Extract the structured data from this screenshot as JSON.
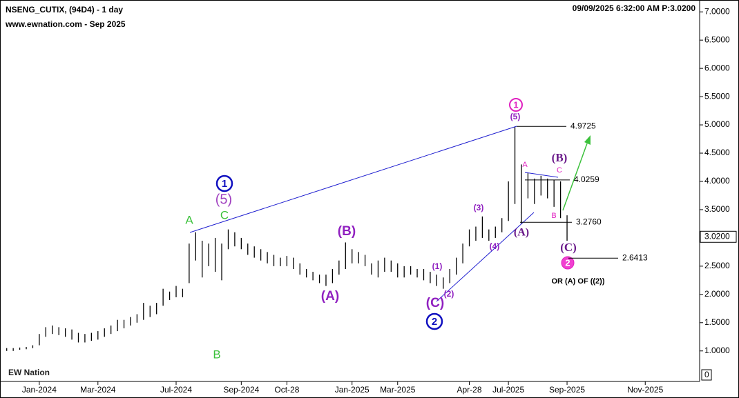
{
  "chart_data": {
    "type": "hilo",
    "title": "NSENG_CUTIX, (94D4) - 1 day",
    "subtitle": "www.ewnation.com  - Sep 2025",
    "timestamp": "09/09/2025 6:32:00 AM  P:3.0200",
    "logo": "EW Nation",
    "color": "#000000",
    "categories": [
      null,
      null,
      null,
      null,
      null,
      "Jan-2024",
      null,
      null,
      null,
      null,
      null,
      null,
      null,
      null,
      "Mar-2024",
      null,
      null,
      null,
      null,
      null,
      null,
      null,
      null,
      null,
      null,
      null,
      "Jul-2024",
      null,
      null,
      null,
      null,
      null,
      null,
      null,
      null,
      null,
      "Sep-2024",
      null,
      null,
      null,
      null,
      null,
      null,
      "Oct-28",
      null,
      null,
      null,
      null,
      null,
      null,
      null,
      null,
      null,
      "Jan-2025",
      null,
      null,
      null,
      null,
      null,
      null,
      "Mar-2025",
      null,
      null,
      null,
      null,
      null,
      null,
      null,
      null,
      null,
      null,
      "Apr-28",
      null,
      null,
      null,
      null,
      null,
      "Jul-2025",
      null,
      null,
      null,
      null,
      null,
      null,
      null,
      null,
      "Sep-2025",
      null,
      null,
      null,
      null,
      null,
      null,
      null,
      null,
      null,
      null,
      null,
      "Nov-2025",
      null,
      null,
      null,
      null,
      null,
      null,
      null
    ],
    "highs": [
      1.05,
      1.05,
      1.06,
      1.07,
      1.1,
      1.3,
      1.42,
      1.45,
      1.42,
      1.4,
      1.38,
      1.32,
      1.3,
      1.32,
      1.35,
      1.4,
      1.45,
      1.55,
      1.55,
      1.6,
      1.65,
      1.85,
      1.8,
      1.85,
      2.1,
      2.05,
      2.15,
      2.1,
      2.9,
      3.1,
      2.95,
      2.9,
      3.0,
      2.9,
      3.15,
      3.1,
      3.0,
      2.9,
      2.85,
      2.8,
      2.75,
      2.7,
      2.65,
      2.68,
      2.65,
      2.55,
      2.45,
      2.4,
      2.35,
      2.35,
      2.45,
      2.6,
      2.92,
      2.8,
      2.75,
      2.7,
      2.55,
      2.6,
      2.65,
      2.6,
      2.55,
      2.5,
      2.5,
      2.45,
      2.45,
      2.4,
      2.35,
      2.3,
      2.45,
      2.65,
      2.9,
      3.15,
      3.2,
      3.38,
      3.15,
      3.2,
      3.35,
      4.0,
      4.97,
      4.3,
      4.15,
      4.05,
      4.1,
      4.05,
      4.03,
      4.0,
      3.4,
      null,
      null,
      null,
      null,
      null,
      null,
      null,
      null,
      null,
      null,
      null,
      null,
      null,
      null,
      null,
      null,
      null,
      null,
      null
    ],
    "lows": [
      1.0,
      1.0,
      1.02,
      1.03,
      1.05,
      1.1,
      1.25,
      1.3,
      1.28,
      1.25,
      1.2,
      1.15,
      1.15,
      1.18,
      1.2,
      1.25,
      1.3,
      1.35,
      1.4,
      1.45,
      1.5,
      1.55,
      1.6,
      1.65,
      1.8,
      1.9,
      1.95,
      1.95,
      2.2,
      2.6,
      2.3,
      2.5,
      2.4,
      2.25,
      2.8,
      2.85,
      2.8,
      2.7,
      2.65,
      2.6,
      2.55,
      2.5,
      2.5,
      2.5,
      2.45,
      2.35,
      2.3,
      2.25,
      2.2,
      2.15,
      2.2,
      2.35,
      2.45,
      2.55,
      2.55,
      2.5,
      2.35,
      2.3,
      2.4,
      2.4,
      2.3,
      2.3,
      2.35,
      2.3,
      2.25,
      2.2,
      2.15,
      2.1,
      2.2,
      2.35,
      2.55,
      2.85,
      2.95,
      3.0,
      2.95,
      3.0,
      3.1,
      3.3,
      3.6,
      3.25,
      3.7,
      3.6,
      3.75,
      3.7,
      3.55,
      3.35,
      2.95,
      null,
      null,
      null,
      null,
      null,
      null,
      null,
      null,
      null,
      null,
      null,
      null,
      null,
      null,
      null,
      null,
      null,
      null,
      null
    ],
    "ylim": [
      0.46,
      7.21
    ],
    "yticks": [
      {
        "value": 1,
        "label": "1.0000"
      },
      {
        "value": 1.5,
        "label": "1.5000"
      },
      {
        "value": 2,
        "label": "2.0000"
      },
      {
        "value": 2.5,
        "label": "2.5000"
      },
      {
        "value": 3,
        "label": "3.0000"
      },
      {
        "value": 3.5,
        "label": "3.5000"
      },
      {
        "value": 4,
        "label": "4.0000"
      },
      {
        "value": 4.5,
        "label": "4.5000"
      },
      {
        "value": 5,
        "label": "5.0000"
      },
      {
        "value": 5.5,
        "label": "5.5000"
      },
      {
        "value": 6,
        "label": "6.0000"
      },
      {
        "value": 6.5,
        "label": "6.5000"
      },
      {
        "value": 7,
        "label": "7.0000"
      }
    ],
    "volume_yticks": [
      0
    ],
    "last_price": {
      "value": 3.02,
      "label": "3.0200"
    },
    "levels": [
      4.9725,
      4.0259,
      {
        "value": 3.276,
        "label": "3.2760"
      },
      2.6413
    ],
    "annotations": [
      "A",
      "C",
      "B",
      "(5)",
      "(B)",
      "(A)",
      "(C)",
      "(1)",
      "(2)",
      "(3)",
      "(4)",
      "(5)",
      "A",
      "(B)",
      "C",
      "B",
      "(A)",
      "(C)",
      "OR (A) OF ((2))",
      "1",
      "1",
      "2",
      "2"
    ]
  }
}
